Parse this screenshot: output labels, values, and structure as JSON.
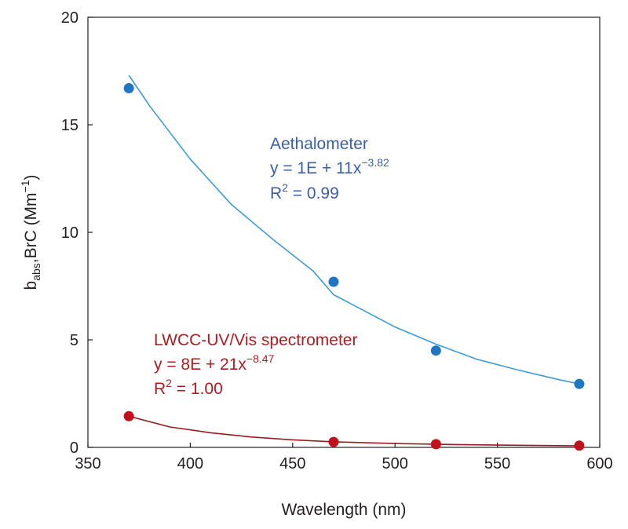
{
  "chart_data": {
    "type": "scatter",
    "xlabel": "Wavelength (nm)",
    "ylabel": {
      "base": "b",
      "sub": "abs",
      "mid": ",BrC (Mm",
      "sup": "−1",
      "end": ")"
    },
    "xlim": [
      350,
      600
    ],
    "ylim": [
      0,
      20
    ],
    "xticks": [
      "350",
      "400",
      "450",
      "500",
      "550",
      "600"
    ],
    "yticks": [
      "0",
      "5",
      "10",
      "15",
      "20"
    ],
    "grid": false,
    "series": [
      {
        "name": "Aethalometer",
        "color": "#1f77c4",
        "fit_color": "#3b9bd6",
        "x": [
          370,
          470,
          520,
          590
        ],
        "y": [
          16.7,
          7.7,
          4.5,
          2.95
        ],
        "fit_points": [
          [
            370,
            17.3
          ],
          [
            380,
            15.9
          ],
          [
            400,
            13.4
          ],
          [
            420,
            11.3
          ],
          [
            440,
            9.7
          ],
          [
            460,
            8.2
          ],
          [
            470,
            7.1
          ],
          [
            500,
            5.6
          ],
          [
            520,
            4.8
          ],
          [
            540,
            4.1
          ],
          [
            560,
            3.6
          ],
          [
            580,
            3.15
          ],
          [
            590,
            2.95
          ]
        ],
        "label_color": "#3a5fa8",
        "equation": {
          "prefix": "y = 1E + 11x",
          "sup": "−3.82"
        },
        "r2": {
          "prefix": "R",
          "sup": "2",
          "suffix": " = 0.99"
        }
      },
      {
        "name": "LWCC-UV/Vis spectrometer",
        "color": "#c0111c",
        "fit_color": "#9b1b21",
        "x": [
          370,
          470,
          520,
          590
        ],
        "y": [
          1.45,
          0.25,
          0.15,
          0.08
        ],
        "fit_points": [
          [
            370,
            1.45
          ],
          [
            390,
            0.95
          ],
          [
            410,
            0.68
          ],
          [
            430,
            0.48
          ],
          [
            450,
            0.35
          ],
          [
            470,
            0.26
          ],
          [
            500,
            0.18
          ],
          [
            530,
            0.13
          ],
          [
            560,
            0.1
          ],
          [
            590,
            0.07
          ]
        ],
        "label_color": "#b01c22",
        "equation": {
          "prefix": "y = 8E + 21x",
          "sup": "−8.47"
        },
        "r2": {
          "prefix": "R",
          "sup": "2",
          "suffix": " = 1.00"
        }
      }
    ]
  }
}
